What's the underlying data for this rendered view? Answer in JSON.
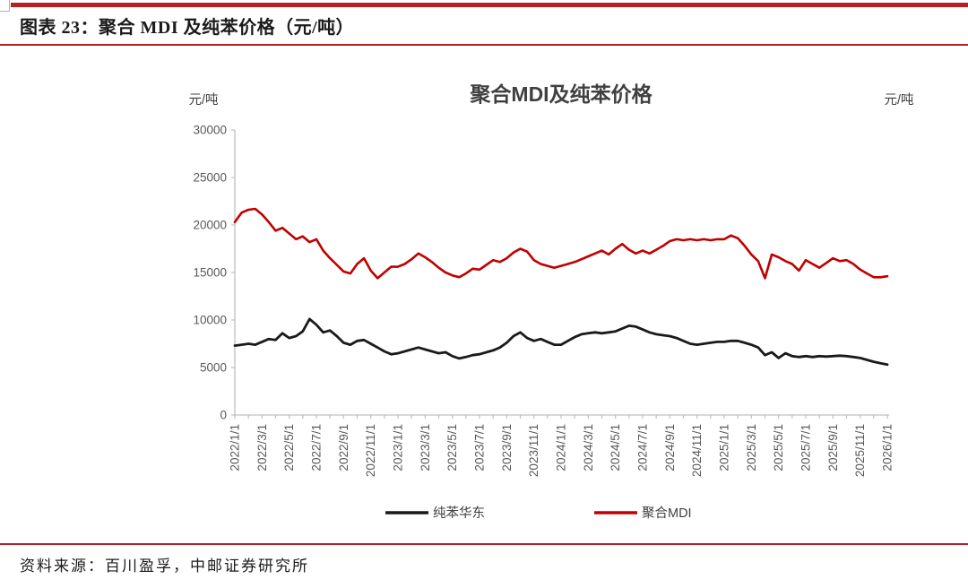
{
  "page": {
    "figure_caption": "图表 23：聚合 MDI 及纯苯价格（元/吨）",
    "source_text": "资料来源：百川盈孚，中邮证券研究所"
  },
  "colors": {
    "rule_red": "#b52025",
    "series_red": "#c00000",
    "series_black": "#1a1a1a",
    "axis_gray": "#bfbfbf",
    "label_gray": "#595959",
    "title_gray": "#404040"
  },
  "chart_data": {
    "type": "line",
    "title": "聚合MDI及纯苯价格",
    "y_unit_left": "元/吨",
    "y_unit_right": "元/吨",
    "ylim": [
      0,
      30000
    ],
    "y_ticks": [
      0,
      5000,
      10000,
      15000,
      20000,
      25000,
      30000
    ],
    "grid": "off",
    "legend_position": "bottom",
    "x_months_span": 48,
    "x_tick_labels": [
      "2022/1/1",
      "2022/3/1",
      "2022/5/1",
      "2022/7/1",
      "2022/9/1",
      "2022/11/1",
      "2023/1/1",
      "2023/3/1",
      "2023/5/1",
      "2023/7/1",
      "2023/9/1",
      "2023/11/1",
      "2024/1/1",
      "2024/3/1",
      "2024/5/1",
      "2024/7/1",
      "2024/9/1",
      "2024/11/1",
      "2025/1/1",
      "2025/3/1",
      "2025/5/1",
      "2025/7/1",
      "2025/9/1",
      "2025/11/1",
      "2026/1/1"
    ],
    "sampling": "semi-monthly from 2022/1/1 to 2026/1/1 (97 points per series)",
    "series": [
      {
        "name": "纯苯华东",
        "color": "#1a1a1a",
        "values": [
          7300,
          7400,
          7500,
          7400,
          7700,
          8000,
          7900,
          8600,
          8100,
          8300,
          8800,
          10100,
          9500,
          8700,
          8900,
          8300,
          7600,
          7400,
          7800,
          7900,
          7500,
          7100,
          6700,
          6400,
          6500,
          6700,
          6900,
          7100,
          6900,
          6700,
          6500,
          6600,
          6200,
          5950,
          6100,
          6300,
          6400,
          6600,
          6800,
          7100,
          7600,
          8300,
          8700,
          8100,
          7800,
          8000,
          7700,
          7400,
          7400,
          7800,
          8200,
          8500,
          8600,
          8700,
          8600,
          8700,
          8800,
          9100,
          9400,
          9300,
          9000,
          8700,
          8500,
          8400,
          8300,
          8100,
          7800,
          7500,
          7400,
          7500,
          7600,
          7700,
          7700,
          7800,
          7800,
          7600,
          7400,
          7100,
          6300,
          6600,
          6000,
          6500,
          6200,
          6100,
          6200,
          6100,
          6200,
          6150,
          6200,
          6250,
          6200,
          6100,
          6000,
          5800,
          5600,
          5450,
          5300
        ]
      },
      {
        "name": "聚合MDI",
        "color": "#c00000",
        "values": [
          20300,
          21300,
          21600,
          21700,
          21100,
          20300,
          19400,
          19700,
          19100,
          18500,
          18800,
          18200,
          18500,
          17300,
          16500,
          15800,
          15100,
          14900,
          15900,
          16500,
          15200,
          14400,
          15000,
          15600,
          15600,
          15900,
          16400,
          17000,
          16600,
          16100,
          15500,
          15000,
          14700,
          14500,
          14900,
          15400,
          15300,
          15800,
          16300,
          16100,
          16500,
          17100,
          17500,
          17200,
          16300,
          15900,
          15700,
          15500,
          15700,
          15900,
          16100,
          16400,
          16700,
          17000,
          17300,
          16900,
          17500,
          18000,
          17400,
          17000,
          17300,
          17000,
          17400,
          17800,
          18300,
          18500,
          18400,
          18500,
          18400,
          18500,
          18400,
          18500,
          18500,
          18900,
          18600,
          17800,
          16900,
          16200,
          14400,
          16900,
          16600,
          16200,
          15900,
          15200,
          16300,
          15900,
          15500,
          16000,
          16500,
          16200,
          16300,
          15900,
          15300,
          14900,
          14500,
          14500,
          14600
        ]
      }
    ]
  }
}
